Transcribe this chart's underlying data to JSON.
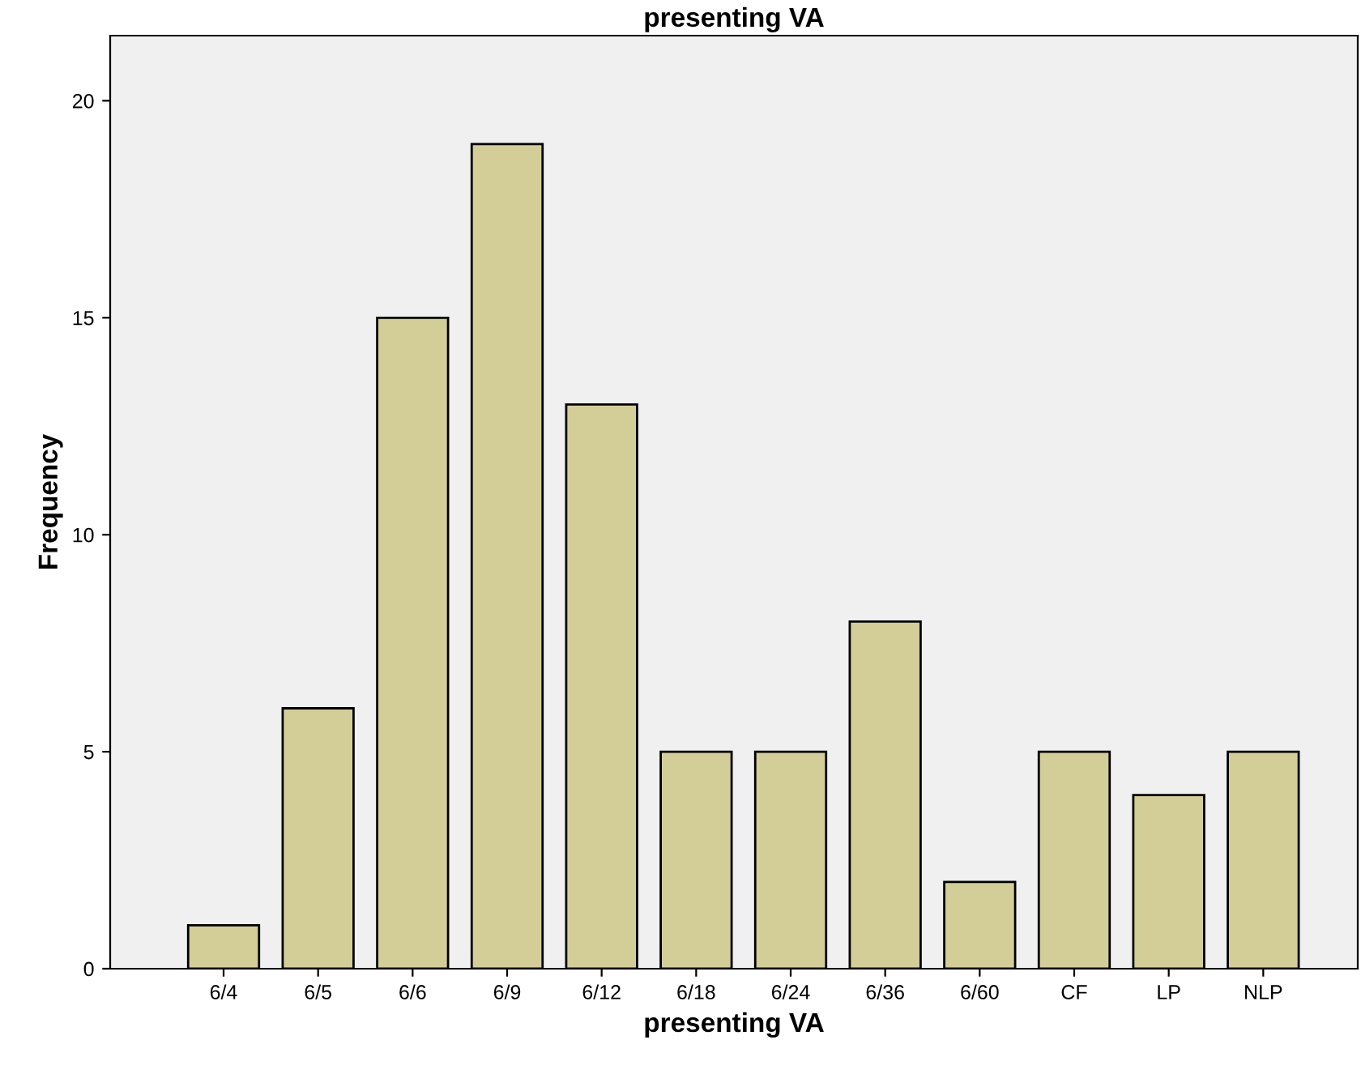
{
  "chart_data": {
    "type": "bar",
    "title": "presenting VA",
    "xlabel": "presenting VA",
    "ylabel": "Frequency",
    "categories": [
      "6/4",
      "6/5",
      "6/6",
      "6/9",
      "6/12",
      "6/18",
      "6/24",
      "6/36",
      "6/60",
      "CF",
      "LP",
      "NLP"
    ],
    "values": [
      1,
      6,
      15,
      19,
      13,
      5,
      5,
      8,
      2,
      5,
      4,
      5
    ],
    "color": "#d3ce98",
    "ylim": [
      0,
      21.5
    ],
    "yticks": [
      0,
      5,
      10,
      15,
      20
    ],
    "grid": false
  }
}
